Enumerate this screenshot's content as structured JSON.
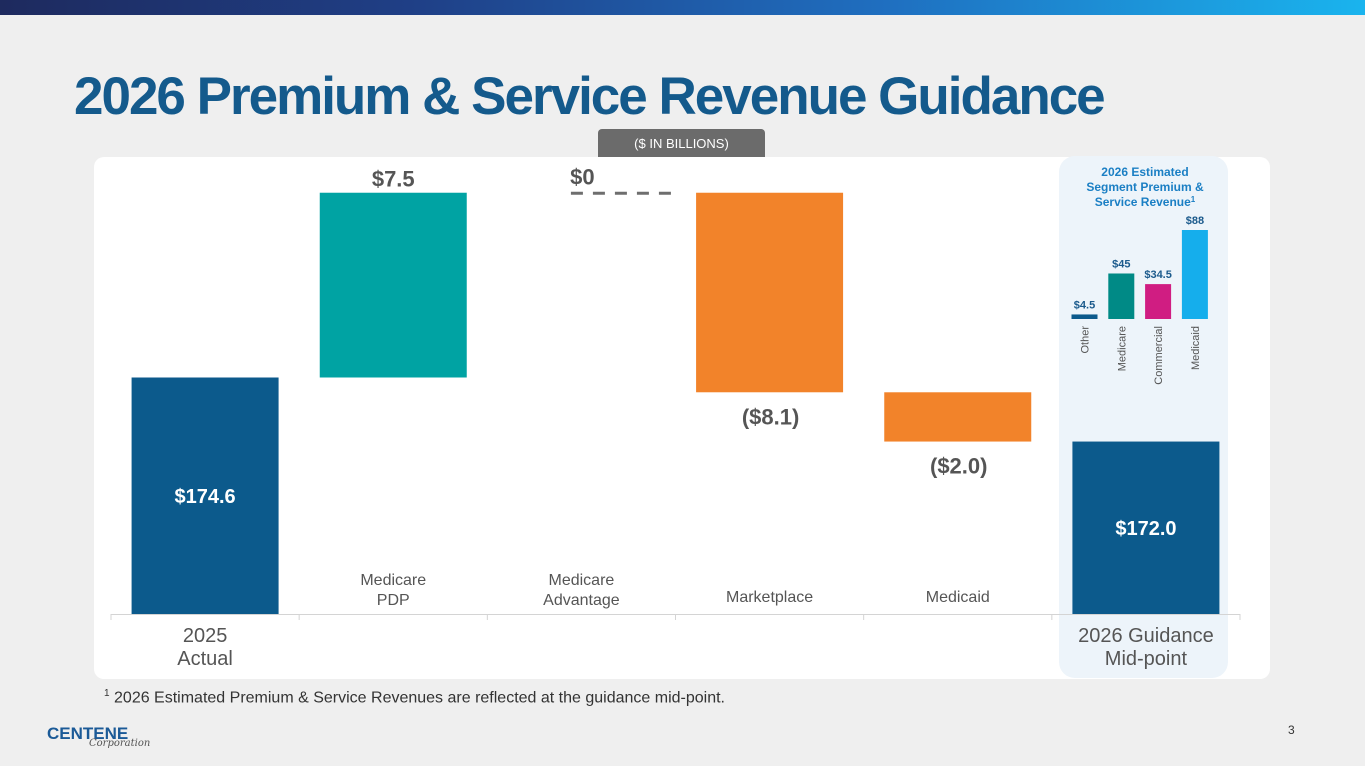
{
  "page": {
    "title": "2026 Premium & Service Revenue Guidance",
    "units": "($ IN BILLIONS)",
    "footnote_marker": "1",
    "footnote": "2026 Estimated Premium & Service Revenues are reflected at the guidance mid-point.",
    "logo_word": "CENTENE",
    "logo_sub": "Corporation",
    "page_number": "3"
  },
  "colors": {
    "navy": "#0c5a8c",
    "teal": "#00a3a3",
    "orange": "#f2832a",
    "gray_dash": "#6e6e6e",
    "other": "#0c5a8c",
    "medicare": "#008a86",
    "commercial": "#d01d82",
    "medicaid": "#15aeec"
  },
  "chart_data": [
    {
      "type": "waterfall",
      "title": "2026 Premium & Service Revenue Guidance",
      "unit": "$ in billions",
      "ylim": [
        165,
        190
      ],
      "steps": [
        {
          "category": "2025 Actual",
          "label_lines": [
            "2025",
            "Actual"
          ],
          "kind": "total",
          "value": 174.6,
          "value_label": "$174.6",
          "color": "navy"
        },
        {
          "category": "Medicare PDP",
          "label_lines": [
            "Medicare",
            "PDP"
          ],
          "kind": "delta",
          "value": 7.5,
          "value_label": "$7.5",
          "color": "teal"
        },
        {
          "category": "Medicare Advantage",
          "label_lines": [
            "Medicare",
            "Advantage"
          ],
          "kind": "delta",
          "value": 0,
          "value_label": "$0",
          "color": "gray_dash"
        },
        {
          "category": "Marketplace",
          "label_lines": [
            "Marketplace"
          ],
          "kind": "delta",
          "value": -8.1,
          "value_label": "($8.1)",
          "color": "orange"
        },
        {
          "category": "Medicaid",
          "label_lines": [
            "Medicaid"
          ],
          "kind": "delta",
          "value": -2.0,
          "value_label": "($2.0)",
          "color": "orange"
        },
        {
          "category": "2026 Guidance Mid-point",
          "label_lines": [
            "2026 Guidance",
            "Mid-point"
          ],
          "kind": "total",
          "value": 172.0,
          "value_label": "$172.0",
          "color": "navy"
        }
      ]
    },
    {
      "type": "bar",
      "title_lines": [
        "2026 Estimated",
        "Segment  Premium &",
        "Service Revenue"
      ],
      "title_superscript": "1",
      "unit": "$ in billions",
      "categories": [
        "Other",
        "Medicare",
        "Commercial",
        "Medicaid"
      ],
      "values": [
        4.5,
        45,
        34.5,
        88
      ],
      "value_labels": [
        "$4.5",
        "$45",
        "$34.5",
        "$88"
      ],
      "colors": [
        "other",
        "medicare",
        "commercial",
        "medicaid"
      ],
      "ylim": [
        0,
        88
      ]
    }
  ]
}
